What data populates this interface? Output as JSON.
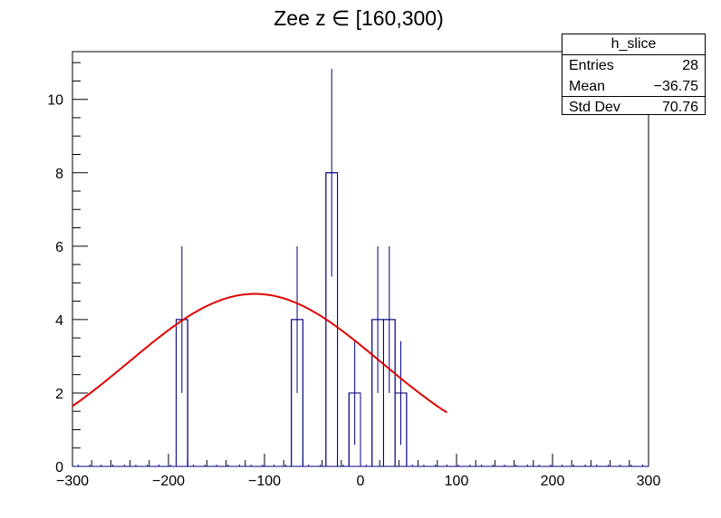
{
  "chart_data": {
    "type": "bar",
    "title": "Zee z ∈ [160,300)",
    "xlabel": "",
    "ylabel": "",
    "xlim": [
      -300,
      300
    ],
    "ylim": [
      0,
      11.3
    ],
    "x_ticks": [
      -300,
      -200,
      -100,
      0,
      100,
      200,
      300
    ],
    "y_ticks": [
      0,
      2,
      4,
      6,
      8,
      10
    ],
    "x_tick_labels": [
      "−300",
      "−200",
      "−100",
      "0",
      "100",
      "200",
      "300"
    ],
    "y_tick_labels": [
      "0",
      "2",
      "4",
      "6",
      "8",
      "10"
    ],
    "bin_width": 12,
    "bins": [
      {
        "low": -192,
        "high": -180,
        "value": 4
      },
      {
        "low": -72,
        "high": -60,
        "value": 4
      },
      {
        "low": -36,
        "high": -24,
        "value": 8
      },
      {
        "low": -12,
        "high": 0,
        "value": 2
      },
      {
        "low": 12,
        "high": 24,
        "value": 4
      },
      {
        "low": 24,
        "high": 36,
        "value": 4
      },
      {
        "low": 36,
        "high": 48,
        "value": 2
      }
    ],
    "fit": {
      "type": "gaussian",
      "amplitude": 4.7,
      "mean": -110,
      "sigma": 131,
      "x_range": [
        -300,
        90
      ]
    },
    "colors": {
      "histogram": "#000080",
      "fit": "#e00000"
    },
    "grid": false,
    "stats": {
      "name": "h_slice",
      "rows": [
        {
          "label": "Entries",
          "value": "28"
        },
        {
          "label": "Mean",
          "value": "−36.75"
        },
        {
          "label": "Std Dev",
          "value": "70.76"
        }
      ]
    }
  }
}
